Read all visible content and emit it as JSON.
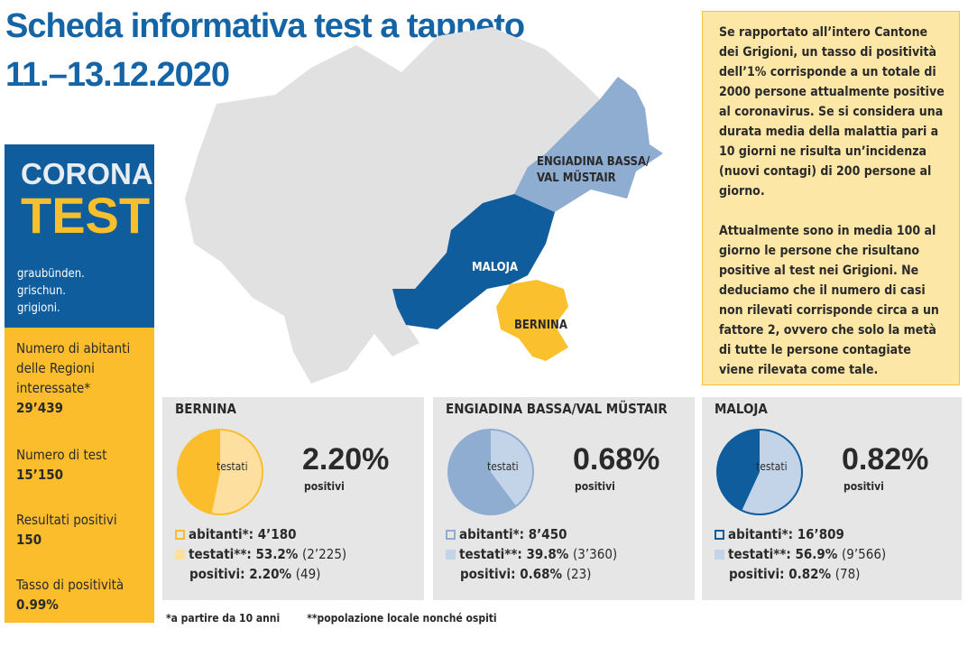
{
  "title": {
    "line1": "Scheda informativa test a tappeto",
    "line2": "11.–13.12.2020"
  },
  "logo": {
    "corona": "CORONA",
    "test": "TEST",
    "lines": [
      "graubünden.",
      "grischun.",
      "grigioni."
    ]
  },
  "stats": [
    {
      "label": "Numero di abitanti delle Regioni interessate*",
      "value": "29’439"
    },
    {
      "label": "Numero di test",
      "value": "15’150"
    },
    {
      "label": "Resultati positivi",
      "value": "150"
    },
    {
      "label": "Tasso di positività",
      "value": "0.99%"
    }
  ],
  "note": {
    "p1": "Se rapportato all’intero Cantone dei Grigioni, un tasso di positività dell’1% corrisponde a un totale di 2000 persone attualmente positive al coronavirus. Se si considera una durata media della malattia pari a 10 giorni ne risulta un’incidenza (nuovi contagi) di 200 persone al giorno.",
    "p2": "Attualmente sono in media 100 al giorno le persone che risultano positive al test nei Grigioni. Ne deduciamo che il numero di casi non rilevati corrisponde circa a un fattore 2, ovvero che solo la metà di tutte le persone contagiate viene rilevata come tale."
  },
  "map": {
    "labels": {
      "engiadina": "ENGIADINA BASSA/\nVAL MÜSTAIR",
      "maloja": "MALOJA",
      "bernina": "BERNINA"
    },
    "colors": {
      "rest": "#e1e1e1",
      "engiadina": "#8eadd1",
      "maloja": "#0f5d9c",
      "bernina": "#fbc02d"
    }
  },
  "regions": [
    {
      "name": "BERNINA",
      "pie_label": "testati",
      "positivity": "2.20%",
      "positivity_label": "positivi",
      "abitanti_label": "abitanti*:",
      "abitanti": "4’180",
      "testati_label": "testati**:",
      "testati_pct": "53.2%",
      "testati_n": "(2’225)",
      "positivi_label": "positivi:",
      "positivi_pct": "2.20%",
      "positivi_n": "(49)",
      "tested_fraction": 0.532,
      "dark": "#fbbd2c",
      "light": "#fde0a0"
    },
    {
      "name": "ENGIADINA BASSA/VAL MÜSTAIR",
      "pie_label": "testati",
      "positivity": "0.68%",
      "positivity_label": "positivi",
      "abitanti_label": "abitanti*:",
      "abitanti": "8’450",
      "testati_label": "testati**:",
      "testati_pct": "39.8%",
      "testati_n": "(3’360)",
      "positivi_label": "positivi:",
      "positivi_pct": "0.68%",
      "positivi_n": "(23)",
      "tested_fraction": 0.398,
      "dark": "#8eadd1",
      "light": "#c4d4e8"
    },
    {
      "name": "MALOJA",
      "pie_label": "testati",
      "positivity": "0.82%",
      "positivity_label": "positivi",
      "abitanti_label": "abitanti*:",
      "abitanti": "16’809",
      "testati_label": "testati**:",
      "testati_pct": "56.9%",
      "testati_n": "(9’566)",
      "positivi_label": "positivi:",
      "positivi_pct": "0.82%",
      "positivi_n": "(78)",
      "tested_fraction": 0.569,
      "dark": "#0f5d9c",
      "light": "#c4d4e8"
    }
  ],
  "footnotes": {
    "f1": "*a partire da 10 anni",
    "f2": "**popolazione locale nonché ospiti"
  }
}
